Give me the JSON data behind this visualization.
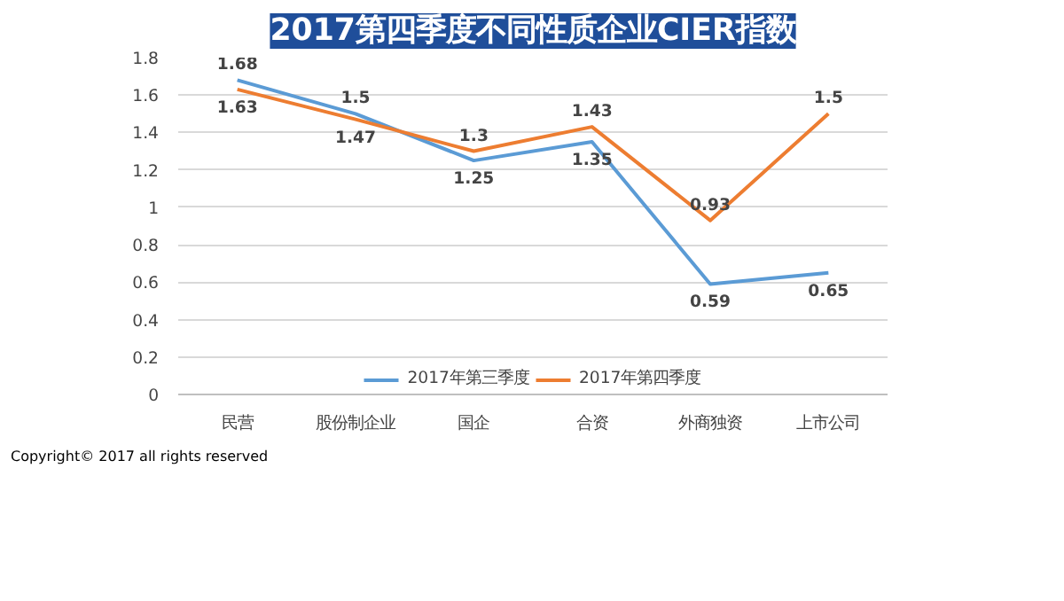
{
  "chart_data": {
    "type": "line",
    "title": "2017第四季度不同性质企业CIER指数",
    "categories": [
      "民营",
      "股份制企业",
      "国企",
      "合资",
      "外商独资",
      "上市公司"
    ],
    "series": [
      {
        "name": "2017年第三季度",
        "color": "#5b9bd5",
        "values": [
          1.68,
          1.5,
          1.25,
          1.35,
          0.59,
          0.65
        ]
      },
      {
        "name": "2017年第四季度",
        "color": "#ed7d31",
        "values": [
          1.63,
          1.47,
          1.3,
          1.43,
          0.93,
          1.5
        ]
      }
    ],
    "ylim": [
      0,
      1.8
    ],
    "yticks": [
      0,
      0.2,
      0.4,
      0.6,
      0.8,
      1,
      1.2,
      1.4,
      1.6,
      1.8
    ],
    "grid": "y",
    "legend": "bottom",
    "data_labels": true,
    "annotations": [
      "Copyright© 2017 all rights reserved"
    ]
  }
}
